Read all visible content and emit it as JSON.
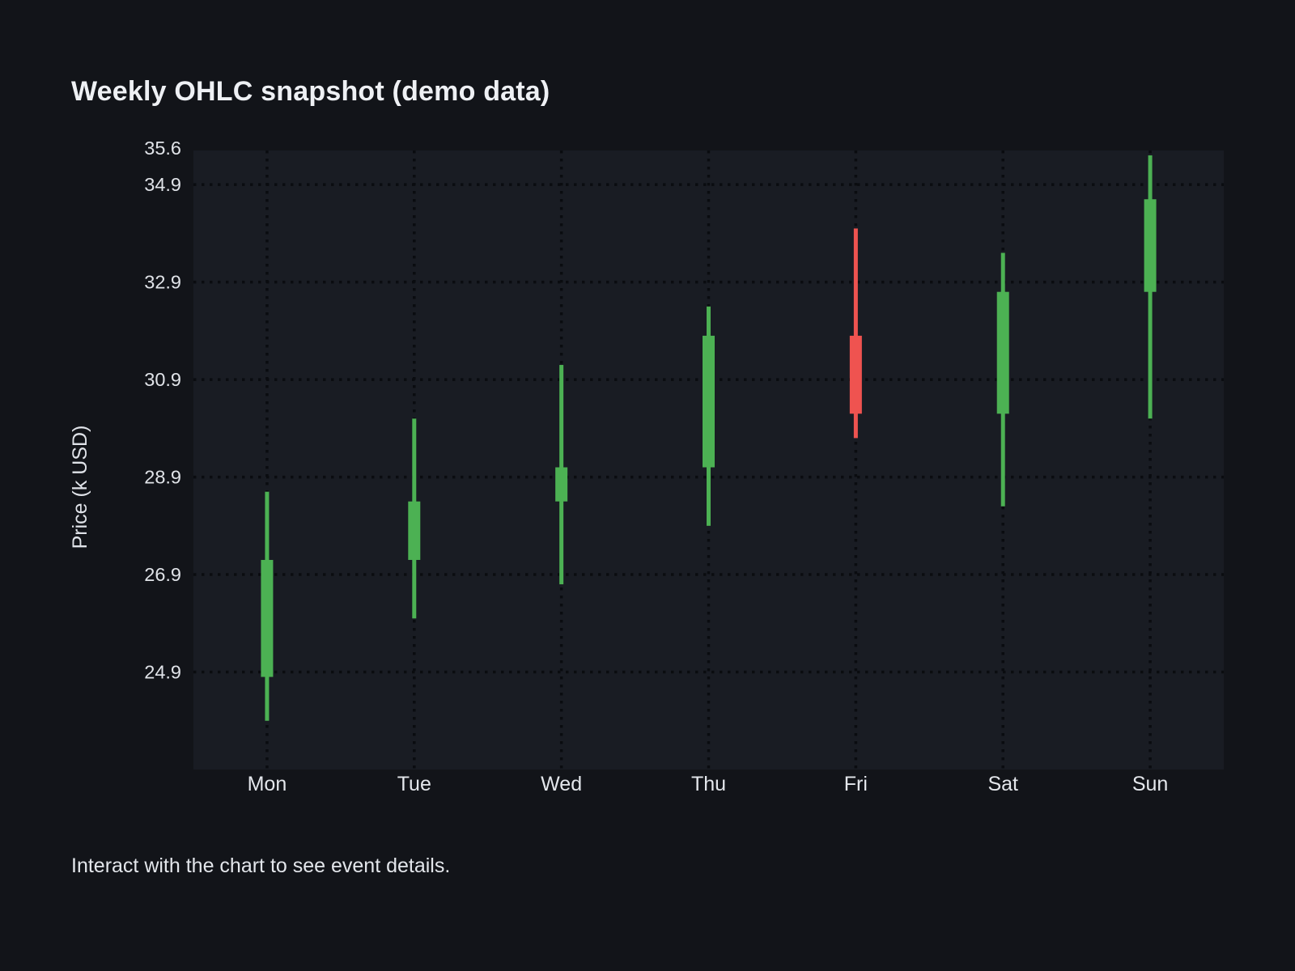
{
  "page": {
    "title": "Weekly OHLC snapshot (demo data)",
    "footer": "Interact with the chart to see event details."
  },
  "chart_data": {
    "type": "candlestick",
    "title": "Weekly OHLC snapshot (demo data)",
    "xlabel": "",
    "ylabel": "Price (k USD)",
    "categories": [
      "Mon",
      "Tue",
      "Wed",
      "Thu",
      "Fri",
      "Sat",
      "Sun"
    ],
    "series": [
      {
        "name": "OHLC",
        "points": [
          {
            "day": "Mon",
            "open": 24.8,
            "high": 28.6,
            "low": 23.9,
            "close": 27.2
          },
          {
            "day": "Tue",
            "open": 27.2,
            "high": 30.1,
            "low": 26.0,
            "close": 28.4
          },
          {
            "day": "Wed",
            "open": 28.4,
            "high": 31.2,
            "low": 26.7,
            "close": 29.1
          },
          {
            "day": "Thu",
            "open": 29.1,
            "high": 32.4,
            "low": 27.9,
            "close": 31.8
          },
          {
            "day": "Fri",
            "open": 31.8,
            "high": 34.0,
            "low": 29.7,
            "close": 30.2
          },
          {
            "day": "Sat",
            "open": 30.2,
            "high": 33.5,
            "low": 28.3,
            "close": 32.7
          },
          {
            "day": "Sun",
            "open": 32.7,
            "high": 35.5,
            "low": 30.1,
            "close": 34.6
          }
        ]
      }
    ],
    "ylim": [
      22.9,
      35.6
    ],
    "yticks": [
      24.9,
      26.9,
      28.9,
      30.9,
      32.9,
      34.9
    ],
    "ymax_tick_label": "35.6",
    "grid": "dotted",
    "legend": "none",
    "colors": {
      "up": "#4cb153",
      "down": "#ef5350",
      "background": "#121419",
      "plot_background": "#191c23",
      "grid_dots": "#0a0c10",
      "tick_text": "#e0e3e8",
      "axis_name_text": "#dfe2e8",
      "title_text": "#eef0f4",
      "footer_text": "#e3e6eb"
    }
  }
}
